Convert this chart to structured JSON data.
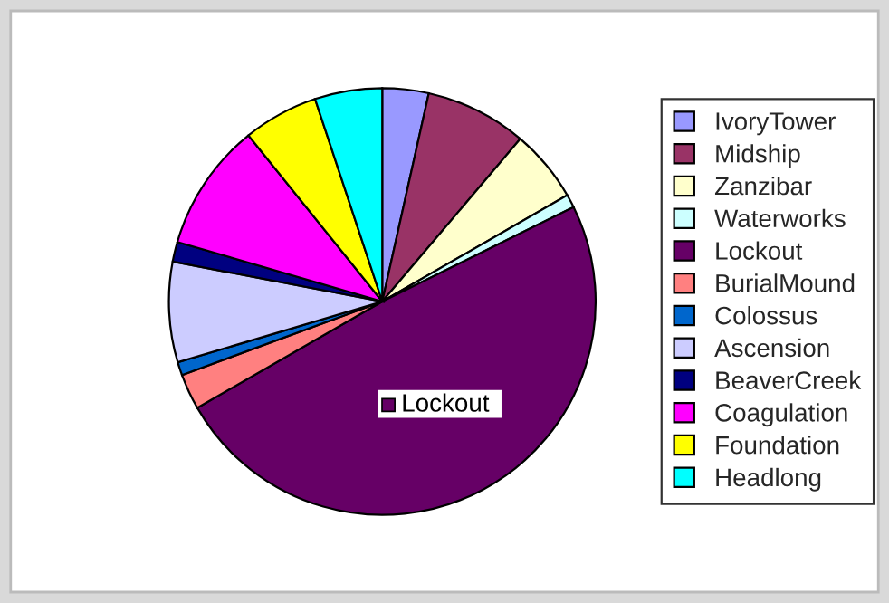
{
  "chart_data": {
    "type": "pie",
    "categories": [
      "IvoryTower",
      "Midship",
      "Zanzibar",
      "Waterworks",
      "Lockout",
      "BurialMound",
      "Colossus",
      "Ascension",
      "BeaverCreek",
      "Coagulation",
      "Foundation",
      "Headlong"
    ],
    "values": [
      3.5,
      7.7,
      5.5,
      1,
      49,
      2.7,
      1,
      7.6,
      1.5,
      9.7,
      5.7,
      5.1
    ],
    "colors": [
      "#9999ff",
      "#993366",
      "#ffffcc",
      "#ccffff",
      "#660066",
      "#ff8080",
      "#0066cc",
      "#ccccff",
      "#000080",
      "#ff00ff",
      "#ffff00",
      "#00ffff"
    ],
    "annotations": [
      {
        "text": "Lockout",
        "x": "Lockout"
      }
    ],
    "legend": "right"
  }
}
